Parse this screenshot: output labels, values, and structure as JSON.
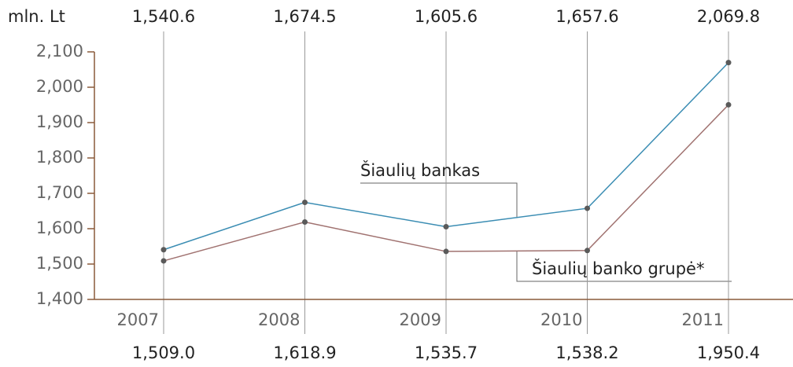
{
  "chart_data": {
    "type": "line",
    "y_label": "mln. Lt",
    "categories": [
      "2007",
      "2008",
      "2009",
      "2010",
      "2011"
    ],
    "series": [
      {
        "name": "Šiaulių bankas",
        "color": "#3b8db3",
        "values": [
          1540.6,
          1674.5,
          1605.6,
          1657.6,
          2069.8
        ],
        "value_labels": [
          "1,540.6",
          "1,674.5",
          "1,605.6",
          "1,657.6",
          "2,069.8"
        ]
      },
      {
        "name": "Šiaulių banko grupė*",
        "color": "#a07270",
        "values": [
          1509.0,
          1618.9,
          1535.7,
          1538.2,
          1950.4
        ],
        "value_labels": [
          "1,509.0",
          "1,618.9",
          "1,535.7",
          "1,538.2",
          "1,950.4"
        ]
      }
    ],
    "ylim": [
      1400,
      2100
    ],
    "yticks": [
      {
        "value": 1400,
        "label": "1,400"
      },
      {
        "value": 1500,
        "label": "1,500"
      },
      {
        "value": 1600,
        "label": "1,600"
      },
      {
        "value": 1700,
        "label": "1,700"
      },
      {
        "value": 1800,
        "label": "1,800"
      },
      {
        "value": 1900,
        "label": "1,900"
      },
      {
        "value": 2000,
        "label": "2,000"
      },
      {
        "value": 2100,
        "label": "2,100"
      }
    ],
    "point_color": "#5a5a5a",
    "axis_color": "#8a5a3a"
  }
}
